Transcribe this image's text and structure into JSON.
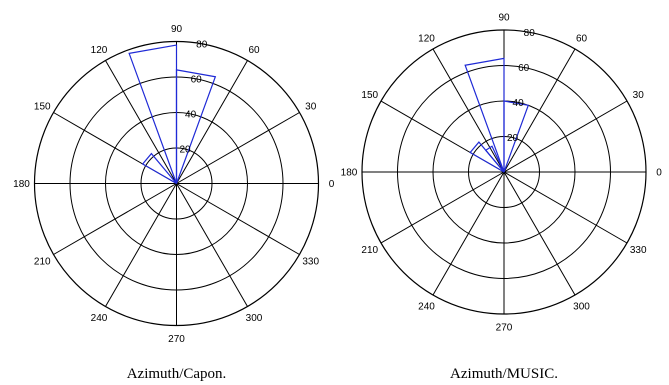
{
  "chart_data": [
    {
      "type": "polar",
      "title": "Azimuth/Capon.",
      "angle_tick_labels": [
        "0",
        "30",
        "60",
        "90",
        "120",
        "150",
        "180",
        "210",
        "240",
        "270",
        "300",
        "330"
      ],
      "radial_tick_labels": [
        "20",
        "40",
        "60",
        "80"
      ],
      "rlim": [
        0,
        80
      ],
      "grid": true,
      "series": [
        {
          "color": "#1f2ad6",
          "bins": [
            {
              "theta_range": [
                90,
                110
              ],
              "r": 78
            },
            {
              "theta_range": [
                70,
                90
              ],
              "r": 64
            },
            {
              "theta_range": [
                130,
                150
              ],
              "r": 22
            }
          ]
        }
      ]
    },
    {
      "type": "polar",
      "title": "Azimuth/MUSIC.",
      "angle_tick_labels": [
        "0",
        "30",
        "60",
        "90",
        "120",
        "150",
        "180",
        "210",
        "240",
        "270",
        "300",
        "330"
      ],
      "radial_tick_labels": [
        "20",
        "40",
        "60",
        "80"
      ],
      "rlim": [
        0,
        80
      ],
      "grid": true,
      "series": [
        {
          "color": "#1f2ad6",
          "bins": [
            {
              "theta_range": [
                90,
                110
              ],
              "r": 64
            },
            {
              "theta_range": [
                70,
                90
              ],
              "r": 40
            },
            {
              "theta_range": [
                130,
                150
              ],
              "r": 22
            },
            {
              "theta_range": [
                115,
                130
              ],
              "r": 16
            }
          ]
        }
      ]
    }
  ]
}
